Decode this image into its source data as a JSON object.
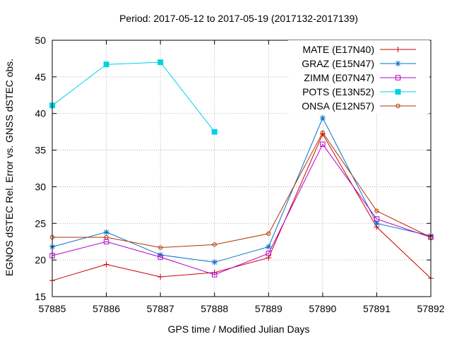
{
  "chart_data": {
    "type": "line",
    "title": "Period: 2017-05-12 to 2017-05-19 (2017132-2017139)",
    "xlabel": "GPS time / Modified Julian Days",
    "ylabel": "EGNOS dSTEC Rel. Error vs. GNSS dSTEC obs.",
    "xlim": [
      57885,
      57892
    ],
    "ylim": [
      15,
      50
    ],
    "xticks": [
      "57885",
      "57886",
      "57887",
      "57888",
      "57889",
      "57890",
      "57891",
      "57892"
    ],
    "yticks": [
      "15",
      "20",
      "25",
      "30",
      "35",
      "40",
      "45",
      "50"
    ],
    "grid": true,
    "legend_position": "top-right",
    "series": [
      {
        "name": "MATE (E17N40)",
        "color": "#cc0000",
        "marker": "plus",
        "x": [
          57885,
          57886,
          57887,
          57888,
          57889,
          57890,
          57891,
          57892
        ],
        "values": [
          17.2,
          19.4,
          17.7,
          18.3,
          20.3,
          37.2,
          24.5,
          17.5
        ]
      },
      {
        "name": "GRAZ (E15N47)",
        "color": "#0073c8",
        "marker": "star",
        "x": [
          57885,
          57886,
          57887,
          57888,
          57889,
          57890,
          57891,
          57892
        ],
        "values": [
          21.8,
          23.8,
          20.7,
          19.7,
          21.8,
          39.4,
          25.0,
          23.3
        ]
      },
      {
        "name": "ZIMM (E07N47)",
        "color": "#b400c8",
        "marker": "square-open",
        "x": [
          57885,
          57886,
          57887,
          57888,
          57889,
          57890,
          57891,
          57892
        ],
        "values": [
          20.6,
          22.5,
          20.4,
          18.0,
          20.9,
          35.8,
          25.6,
          23.1
        ]
      },
      {
        "name": "POTS (E13N52)",
        "color": "#00d2e6",
        "marker": "square-filled",
        "x": [
          57885,
          57886,
          57887,
          57888
        ],
        "values": [
          41.1,
          46.7,
          47.0,
          37.5
        ]
      },
      {
        "name": "ONSA (E12N57)",
        "color": "#b43200",
        "marker": "circle-open",
        "x": [
          57885,
          57886,
          57887,
          57888,
          57889,
          57890,
          57891,
          57892
        ],
        "values": [
          23.1,
          23.1,
          21.7,
          22.1,
          23.6,
          37.4,
          26.7,
          23.1
        ]
      }
    ]
  }
}
